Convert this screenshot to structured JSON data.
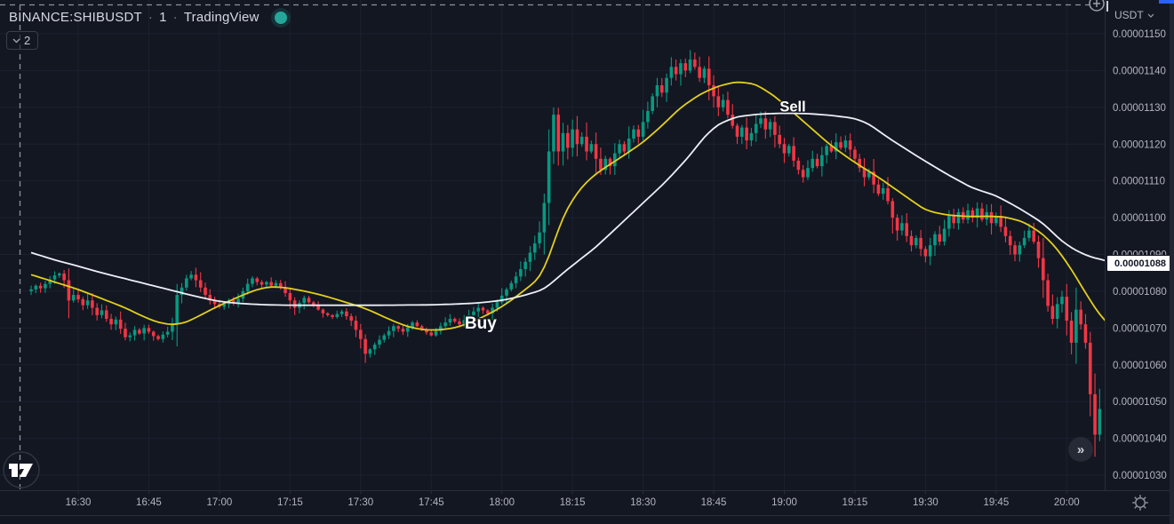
{
  "header": {
    "symbol": "BINANCE:SHIBUSDT",
    "separator": "·",
    "interval": "1",
    "platform": "TradingView",
    "status_dot_color": "#26a69a",
    "objects_count": "2"
  },
  "price_scale": {
    "currency": "USDT",
    "ma_value_label": "0.00001088",
    "tick_labels": [
      "0.00001150",
      "0.00001140",
      "0.00001130",
      "0.00001120",
      "0.00001110",
      "0.00001100",
      "0.00001090",
      "0.00001080",
      "0.00001070",
      "0.00001060",
      "0.00001050",
      "0.00001040",
      "0.00001030"
    ]
  },
  "time_scale": {
    "tick_labels": [
      "16:30",
      "16:45",
      "17:00",
      "17:15",
      "17:30",
      "17:45",
      "18:00",
      "18:15",
      "18:30",
      "18:45",
      "19:00",
      "19:15",
      "19:30",
      "19:45",
      "20:00"
    ]
  },
  "controls": {
    "fast_forward_glyph": "»"
  },
  "colors": {
    "background": "#131722",
    "grid": "#1c2130",
    "up_candle": "#089981",
    "down_candle": "#f23645",
    "fast_ma": "#e3cf1c",
    "slow_ma": "#eceff5",
    "axis_text": "#b2b5be",
    "dashed_line": "#8d919c",
    "border": "#2a2e39",
    "annotation_text": "#ffffff"
  },
  "chart_data": {
    "type": "candlestick",
    "title": "BINANCE:SHIBUSDT · 1 · TradingView",
    "symbol": "BINANCE:SHIBUSDT",
    "interval_minutes": 1,
    "price_unit": "1e-8 USDT",
    "start_time": "16:20",
    "x_tick_interval_min": 15,
    "x_tick_labels": [
      "16:30",
      "16:45",
      "17:00",
      "17:15",
      "17:30",
      "17:45",
      "18:00",
      "18:15",
      "18:30",
      "18:45",
      "19:00",
      "19:15",
      "19:30",
      "19:45",
      "20:00"
    ],
    "y_ticks": [
      1150,
      1140,
      1130,
      1120,
      1110,
      1100,
      1090,
      1080,
      1070,
      1060,
      1050,
      1040,
      1030
    ],
    "y_tick_labels": [
      "0.00001150",
      "0.00001140",
      "0.00001130",
      "0.00001120",
      "0.00001110",
      "0.00001100",
      "0.00001090",
      "0.00001080",
      "0.00001070",
      "0.00001060",
      "0.00001050",
      "0.00001040",
      "0.00001030"
    ],
    "grid": true,
    "open_first": 1080,
    "closes_1e8": [
      1080.5,
      1081.5,
      1080.8,
      1082,
      1083.2,
      1084.3,
      1084.8,
      1083,
      1077.5,
      1079,
      1077.8,
      1076.2,
      1077.5,
      1075.5,
      1073.5,
      1074.8,
      1072.5,
      1071,
      1072.3,
      1069.8,
      1067.5,
      1068,
      1069.5,
      1068.5,
      1070,
      1069,
      1067.8,
      1067,
      1068.2,
      1069,
      1071,
      1079,
      1081,
      1083.5,
      1084.5,
      1083,
      1081,
      1079,
      1077.5,
      1076.5,
      1075.8,
      1076.5,
      1077.5,
      1076.8,
      1078,
      1080,
      1082,
      1083.5,
      1082.5,
      1081.8,
      1082.5,
      1081.5,
      1082.2,
      1081,
      1079.5,
      1077.5,
      1075.5,
      1076.8,
      1078.2,
      1077,
      1076,
      1075,
      1074,
      1073.5,
      1073,
      1073.8,
      1074.5,
      1073.2,
      1072,
      1069.5,
      1067,
      1063,
      1064.2,
      1065.5,
      1066.8,
      1068,
      1069.2,
      1070.5,
      1069.8,
      1069,
      1070.2,
      1071.5,
      1070.5,
      1069.5,
      1068.8,
      1068,
      1069.2,
      1070.5,
      1071.5,
      1072.5,
      1071.8,
      1071,
      1072.2,
      1073.5,
      1074.5,
      1075.5,
      1074.8,
      1074,
      1075.5,
      1077,
      1078.8,
      1080.5,
      1082.2,
      1084,
      1086,
      1088,
      1090.5,
      1093,
      1096,
      1104,
      1118,
      1128,
      1118,
      1123,
      1119,
      1124,
      1120,
      1122,
      1118,
      1120,
      1116,
      1113,
      1116,
      1114,
      1117.5,
      1120,
      1118,
      1121.5,
      1124,
      1122,
      1126,
      1129,
      1133,
      1136,
      1134,
      1138,
      1141,
      1139,
      1142,
      1140,
      1143,
      1141,
      1138,
      1140.5,
      1136,
      1133,
      1130,
      1132,
      1128,
      1125,
      1122,
      1124.5,
      1121,
      1123,
      1125.5,
      1127,
      1124,
      1126,
      1122.5,
      1120,
      1117.5,
      1119.5,
      1115.5,
      1113,
      1111,
      1113.5,
      1116,
      1114,
      1117,
      1119.5,
      1118,
      1120.5,
      1119,
      1121,
      1118.5,
      1116,
      1113.5,
      1111,
      1112.5,
      1109,
      1106.5,
      1108,
      1104.5,
      1100,
      1096.5,
      1098.5,
      1095,
      1092.5,
      1094.5,
      1091.5,
      1089.5,
      1092.5,
      1095.5,
      1093.5,
      1097,
      1100.5,
      1098.5,
      1101.5,
      1099.5,
      1102,
      1100,
      1102.5,
      1099.5,
      1101.5,
      1098.5,
      1100.5,
      1097.5,
      1095,
      1092.5,
      1090,
      1092.5,
      1094.5,
      1096.5,
      1093.5,
      1089,
      1083,
      1076,
      1072.5,
      1076.5,
      1078.5,
      1072,
      1066,
      1075,
      1071,
      1066,
      1052,
      1041,
      1048
    ],
    "series": [
      {
        "name": "fast-ma-yellow",
        "color": "#e3cf1c",
        "points": [
          [
            0,
            1084.5
          ],
          [
            5,
            1082.5
          ],
          [
            10,
            1080.5
          ],
          [
            15,
            1078
          ],
          [
            20,
            1075.5
          ],
          [
            24,
            1073
          ],
          [
            27,
            1071.5
          ],
          [
            30,
            1070.8
          ],
          [
            33,
            1071.5
          ],
          [
            36,
            1073.5
          ],
          [
            39,
            1075.5
          ],
          [
            42,
            1077.3
          ],
          [
            45,
            1079
          ],
          [
            48,
            1080.5
          ],
          [
            51,
            1081.3
          ],
          [
            54,
            1081
          ],
          [
            57,
            1080.3
          ],
          [
            60,
            1079.5
          ],
          [
            63,
            1078.5
          ],
          [
            66,
            1077.3
          ],
          [
            69,
            1076.2
          ],
          [
            72,
            1074.8
          ],
          [
            75,
            1073
          ],
          [
            78,
            1071.3
          ],
          [
            81,
            1070
          ],
          [
            84,
            1069.4
          ],
          [
            87,
            1069.5
          ],
          [
            90,
            1070
          ],
          [
            93,
            1071.3
          ],
          [
            96,
            1073
          ],
          [
            99,
            1075
          ],
          [
            102,
            1077.5
          ],
          [
            105,
            1080.5
          ],
          [
            108,
            1083.5
          ],
          [
            110,
            1089
          ],
          [
            112,
            1097
          ],
          [
            114,
            1103
          ],
          [
            117,
            1108.5
          ],
          [
            120,
            1112
          ],
          [
            123,
            1114.5
          ],
          [
            126,
            1117
          ],
          [
            130,
            1120.5
          ],
          [
            134,
            1125
          ],
          [
            138,
            1130
          ],
          [
            142,
            1133.5
          ],
          [
            146,
            1135.8
          ],
          [
            150,
            1137
          ],
          [
            154,
            1136.3
          ],
          [
            158,
            1133
          ],
          [
            162,
            1128.5
          ],
          [
            166,
            1124
          ],
          [
            170,
            1119.5
          ],
          [
            175,
            1115
          ],
          [
            180,
            1111
          ],
          [
            185,
            1106.5
          ],
          [
            190,
            1102
          ],
          [
            194,
            1100.8
          ],
          [
            199,
            1100.3
          ],
          [
            204,
            1100.4
          ],
          [
            207,
            1100.2
          ],
          [
            211,
            1098.8
          ],
          [
            215,
            1095.5
          ],
          [
            218,
            1091.5
          ],
          [
            221,
            1086
          ],
          [
            224,
            1079.5
          ],
          [
            227,
            1073.5
          ],
          [
            229,
            1070.8
          ]
        ]
      },
      {
        "name": "slow-ma-white",
        "color": "#eceff5",
        "last_value_label": "0.00001088",
        "points": [
          [
            0,
            1090.5
          ],
          [
            5,
            1088.5
          ],
          [
            10,
            1086.8
          ],
          [
            15,
            1085
          ],
          [
            20,
            1083.4
          ],
          [
            25,
            1081.8
          ],
          [
            30,
            1080.2
          ],
          [
            35,
            1078.6
          ],
          [
            40,
            1077.2
          ],
          [
            45,
            1076.6
          ],
          [
            50,
            1076.3
          ],
          [
            55,
            1076.2
          ],
          [
            65,
            1076.2
          ],
          [
            75,
            1076.2
          ],
          [
            85,
            1076.3
          ],
          [
            90,
            1076.5
          ],
          [
            95,
            1076.8
          ],
          [
            100,
            1077.5
          ],
          [
            104,
            1078.6
          ],
          [
            109,
            1080.5
          ],
          [
            114,
            1086
          ],
          [
            120,
            1092
          ],
          [
            125,
            1098
          ],
          [
            130,
            1104
          ],
          [
            135,
            1110
          ],
          [
            140,
            1117
          ],
          [
            143,
            1122
          ],
          [
            146,
            1125.5
          ],
          [
            150,
            1127.5
          ],
          [
            155,
            1128.2
          ],
          [
            160,
            1128.4
          ],
          [
            165,
            1128.3
          ],
          [
            170,
            1127.8
          ],
          [
            175,
            1127
          ],
          [
            178,
            1125.5
          ],
          [
            182,
            1121.8
          ],
          [
            186,
            1118.5
          ],
          [
            190,
            1115.3
          ],
          [
            195,
            1111.5
          ],
          [
            200,
            1108
          ],
          [
            205,
            1106
          ],
          [
            210,
            1102.5
          ],
          [
            215,
            1098.5
          ],
          [
            219,
            1093.5
          ],
          [
            222,
            1091
          ],
          [
            225,
            1089.3
          ],
          [
            229,
            1088.1
          ]
        ]
      }
    ],
    "annotations": [
      {
        "text": "Buy",
        "time_min": 95.5,
        "price": 1071.3,
        "size": 19
      },
      {
        "text": "Sell",
        "time_min": 161.8,
        "price": 1130.3,
        "size": 16.5
      }
    ]
  }
}
